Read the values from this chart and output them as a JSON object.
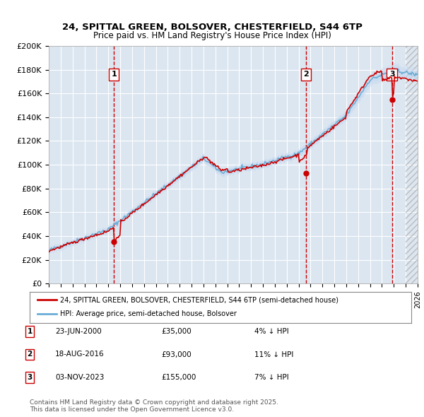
{
  "title1": "24, SPITTAL GREEN, BOLSOVER, CHESTERFIELD, S44 6TP",
  "title2": "Price paid vs. HM Land Registry's House Price Index (HPI)",
  "ylabel_ticks": [
    "£0",
    "£20K",
    "£40K",
    "£60K",
    "£80K",
    "£100K",
    "£120K",
    "£140K",
    "£160K",
    "£180K",
    "£200K"
  ],
  "ytick_values": [
    0,
    20000,
    40000,
    60000,
    80000,
    100000,
    120000,
    140000,
    160000,
    180000,
    200000
  ],
  "xmin": 1995.0,
  "xmax": 2026.0,
  "ymin": 0,
  "ymax": 200000,
  "sale_dates": [
    2000.47,
    2016.63,
    2023.84
  ],
  "sale_prices": [
    35000,
    93000,
    155000
  ],
  "sale_labels": [
    "1",
    "2",
    "3"
  ],
  "background_color": "#dce6f1",
  "plot_bg_color": "#dce6f1",
  "line_color_property": "#cc0000",
  "line_color_hpi": "#6baed6",
  "grid_color": "#ffffff",
  "hpi_fill_color": "#c6d9f0",
  "legend_line1": "24, SPITTAL GREEN, BOLSOVER, CHESTERFIELD, S44 6TP (semi-detached house)",
  "legend_line2": "HPI: Average price, semi-detached house, Bolsover",
  "table_rows": [
    {
      "label": "1",
      "date": "23-JUN-2000",
      "price": "£35,000",
      "pct": "4% ↓ HPI"
    },
    {
      "label": "2",
      "date": "18-AUG-2016",
      "price": "£93,000",
      "pct": "11% ↓ HPI"
    },
    {
      "label": "3",
      "date": "03-NOV-2023",
      "price": "£155,000",
      "pct": "7% ↓ HPI"
    }
  ],
  "footnote": "Contains HM Land Registry data © Crown copyright and database right 2025.\nThis data is licensed under the Open Government Licence v3.0.",
  "hatch_color": "#aaaaaa",
  "vline_color": "#cc0000"
}
